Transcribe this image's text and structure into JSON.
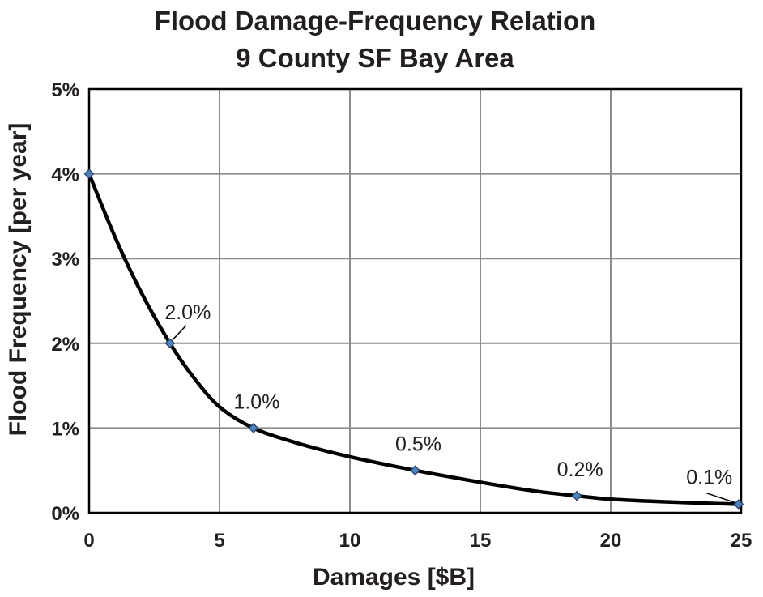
{
  "chart_data": {
    "type": "line",
    "title": "Flood Damage-Frequency Relation",
    "subtitle": "9 County SF Bay Area",
    "xlabel": "Damages [$B]",
    "ylabel": "Flood Frequency [per year]",
    "xlim": [
      0,
      25
    ],
    "ylim": [
      0,
      5
    ],
    "xticks": [
      0,
      5,
      10,
      15,
      20,
      25
    ],
    "yticks": [
      0,
      1,
      2,
      3,
      4,
      5
    ],
    "xtick_labels": [
      "0",
      "5",
      "10",
      "15",
      "20",
      "25"
    ],
    "ytick_labels": [
      "0%",
      "1%",
      "2%",
      "3%",
      "4%",
      "5%"
    ],
    "grid": true,
    "legend": "none",
    "series": [
      {
        "color": "#000000",
        "marker_color": "#4f81bd",
        "x": [
          0,
          3.1,
          6.3,
          12.5,
          18.7,
          24.9
        ],
        "y": [
          4.0,
          2.0,
          1.0,
          0.5,
          0.2,
          0.1
        ],
        "data_labels": [
          "",
          "2.0%",
          "1.0%",
          "0.5%",
          "0.2%",
          "0.1%"
        ]
      }
    ],
    "curve_x": [
      0,
      1,
      2,
      3.1,
      4,
      5,
      6.3,
      8,
      10,
      12.5,
      15,
      17,
      18.7,
      20,
      22,
      24.9
    ],
    "curve_y": [
      4.0,
      3.25,
      2.6,
      2.0,
      1.6,
      1.25,
      1.0,
      0.82,
      0.66,
      0.5,
      0.36,
      0.26,
      0.2,
      0.16,
      0.13,
      0.1
    ]
  }
}
